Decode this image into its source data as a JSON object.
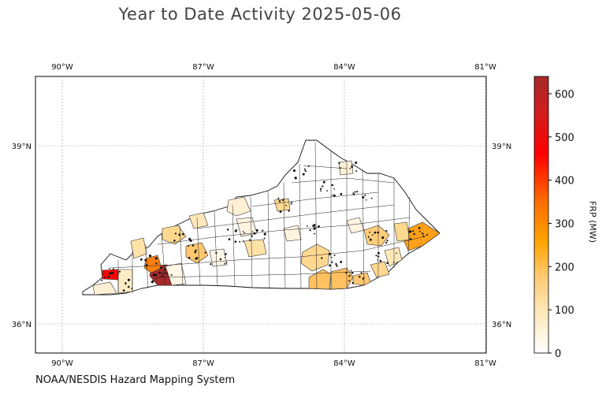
{
  "map": {
    "title": "Year to Date Activity 2025-05-06",
    "credit": "NOAA/NESDIS Hazard Mapping System",
    "lon_ticks": [
      "90°W",
      "87°W",
      "84°W",
      "81°W"
    ],
    "lat_ticks": [
      "39°N",
      "36°N"
    ],
    "colorbar": {
      "label": "FRP (MW)",
      "ticks": [
        "0",
        "100",
        "200",
        "300",
        "400",
        "500",
        "600"
      ],
      "max": 640,
      "colors": [
        "#ffffff",
        "#ffe8b8",
        "#ffc870",
        "#ffa500",
        "#ff6a00",
        "#ff0000",
        "#d41c1c",
        "#a52a2a"
      ]
    },
    "legend_colors": {
      "state_fill": "#ffffff",
      "county_stroke": "#222222",
      "fire_point": "#111111"
    }
  }
}
